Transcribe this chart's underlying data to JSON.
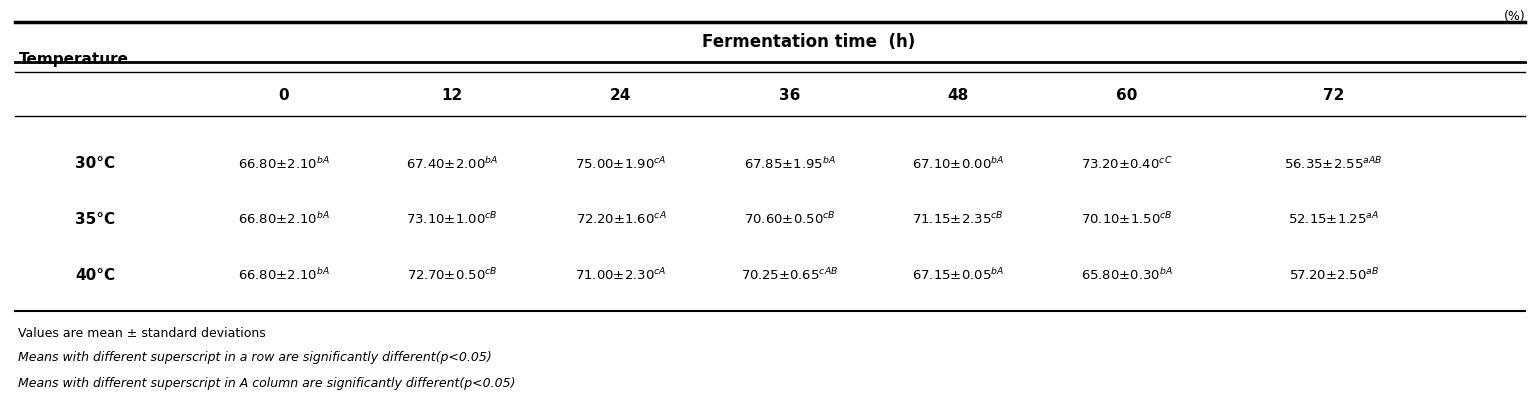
{
  "title_unit": "(%)",
  "col_header_main": "Fermentation time  (h)",
  "col_header_sub": [
    "0",
    "12",
    "24",
    "36",
    "48",
    "60",
    "72"
  ],
  "row_header_label": "Temperature",
  "rows": [
    {
      "label": "30°C",
      "values": [
        "66.80±2.10$^{bA}$",
        "67.40±2.00$^{bA}$",
        "75.00±1.90$^{cA}$",
        "67.85±1.95$^{bA}$",
        "67.10±0.00$^{bA}$",
        "73.20±0.40$^{cC}$",
        "56.35±2.55$^{aAB}$"
      ]
    },
    {
      "label": "35°C",
      "values": [
        "66.80±2.10$^{bA}$",
        "73.10±1.00$^{cB}$",
        "72.20±1.60$^{cA}$",
        "70.60±0.50$^{cB}$",
        "71.15±2.35$^{cB}$",
        "70.10±1.50$^{cB}$",
        "52.15±1.25$^{aA}$"
      ]
    },
    {
      "label": "40°C",
      "values": [
        "66.80±2.10$^{bA}$",
        "72.70±0.50$^{cB}$",
        "71.00±2.30$^{cA}$",
        "70.25±0.65$^{cAB}$",
        "67.15±0.05$^{bA}$",
        "65.80±0.30$^{bA}$",
        "57.20±2.50$^{aB}$"
      ]
    }
  ],
  "footnote1": "Values are mean ± standard deviations",
  "footnote2": "Means with different superscript in a row are significantly different(p<0.05)",
  "footnote3": "Means with different superscript in A column are significantly different(p<0.05)"
}
